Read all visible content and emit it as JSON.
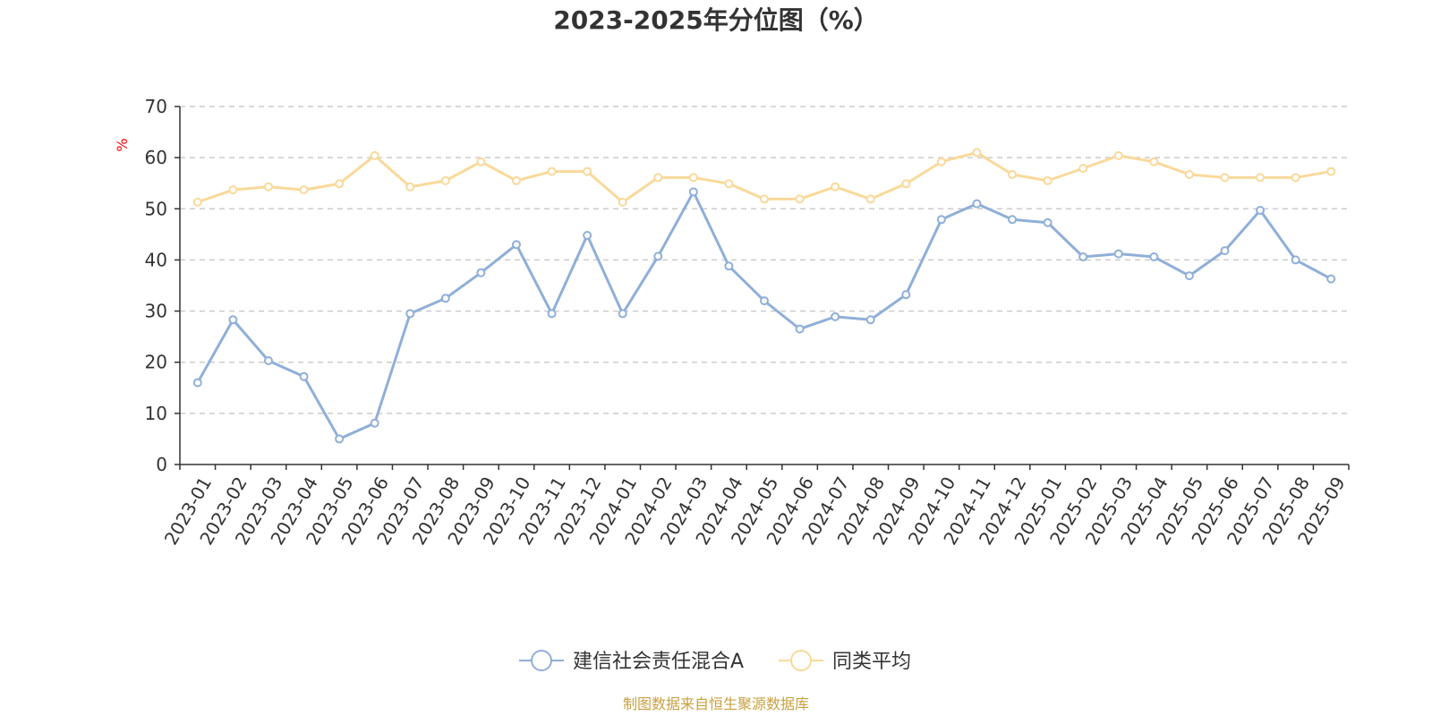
{
  "chart_data": {
    "type": "line",
    "title": "2023-2025年分位图（%）",
    "ylabel": "%",
    "xlabel": "",
    "ylim": [
      0,
      70
    ],
    "yticks": [
      0,
      10,
      20,
      30,
      40,
      50,
      60,
      70
    ],
    "grid": "horizontal-dashed",
    "legend_position": "bottom",
    "categories": [
      "2023-01",
      "2023-02",
      "2023-03",
      "2023-04",
      "2023-05",
      "2023-06",
      "2023-07",
      "2023-08",
      "2023-09",
      "2023-10",
      "2023-11",
      "2023-12",
      "2024-01",
      "2024-02",
      "2024-03",
      "2024-04",
      "2024-05",
      "2024-06",
      "2024-07",
      "2024-08",
      "2024-09",
      "2024-10",
      "2024-11",
      "2024-12",
      "2025-01",
      "2025-02",
      "2025-03",
      "2025-04",
      "2025-05",
      "2025-06",
      "2025-07",
      "2025-08",
      "2025-09"
    ],
    "series": [
      {
        "name": "建信社会责任混合A",
        "color": "#8fafd8",
        "values": [
          16,
          28.3,
          20.3,
          17.2,
          5,
          8.1,
          29.5,
          32.5,
          37.5,
          43,
          29.5,
          44.8,
          29.5,
          40.7,
          53.3,
          38.8,
          32,
          26.5,
          28.9,
          28.3,
          33.2,
          47.9,
          51,
          47.9,
          47.3,
          40.6,
          41.2,
          40.6,
          36.9,
          41.8,
          49.7,
          40,
          36.3
        ]
      },
      {
        "name": "同类平均",
        "color": "#f9d99a",
        "values": [
          51.3,
          53.7,
          54.3,
          53.7,
          54.9,
          60.4,
          54.3,
          55.5,
          59.2,
          55.5,
          57.3,
          57.3,
          51.3,
          56.1,
          56.1,
          54.9,
          51.9,
          51.9,
          54.3,
          51.9,
          54.9,
          59.2,
          61,
          56.7,
          55.5,
          57.9,
          60.4,
          59.2,
          56.7,
          56.1,
          56.1,
          56.1,
          57.3
        ]
      }
    ],
    "source": "制图数据来自恒生聚源数据库"
  }
}
